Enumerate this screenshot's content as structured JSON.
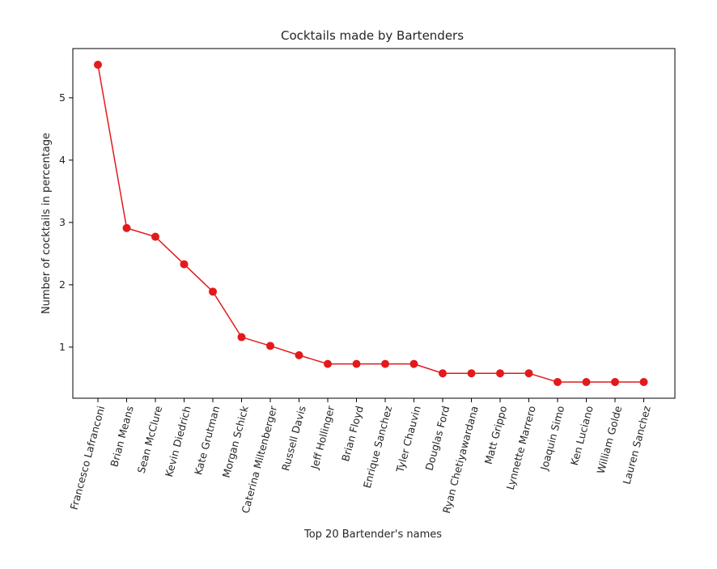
{
  "chart_data": {
    "type": "line",
    "title": "Cocktails made by Bartenders",
    "xlabel": "Top 20 Bartender's names",
    "ylabel": "Number of cocktails in percentage",
    "categories": [
      "Francesco Lafranconi",
      "Brian Means",
      "Sean McClure",
      "Kevin Diedrich",
      "Kate Grutman",
      "Morgan Schick",
      "Caterina Miltenberger",
      "Russell Davis",
      "Jeff Hollinger",
      "Brian Floyd",
      "Enrique Sanchez",
      "Tyler Chauvin",
      "Douglas Ford",
      "Ryan Chetiyawardana",
      "Matt Grippo",
      "Lynnette Marrero",
      "Joaquin Simo",
      "Ken Luciano",
      "William Golde",
      "Lauren Sanchez"
    ],
    "values": [
      5.53,
      2.91,
      2.77,
      2.33,
      1.89,
      1.16,
      1.02,
      0.87,
      0.73,
      0.73,
      0.73,
      0.73,
      0.58,
      0.58,
      0.58,
      0.58,
      0.44,
      0.44,
      0.44,
      0.44
    ],
    "y_ticks": [
      1,
      2,
      3,
      4,
      5
    ],
    "ylim": [
      0.18,
      5.79
    ],
    "grid": false,
    "legend": "none",
    "line_color": "#e31a1c",
    "marker_color": "#e31a1c"
  }
}
